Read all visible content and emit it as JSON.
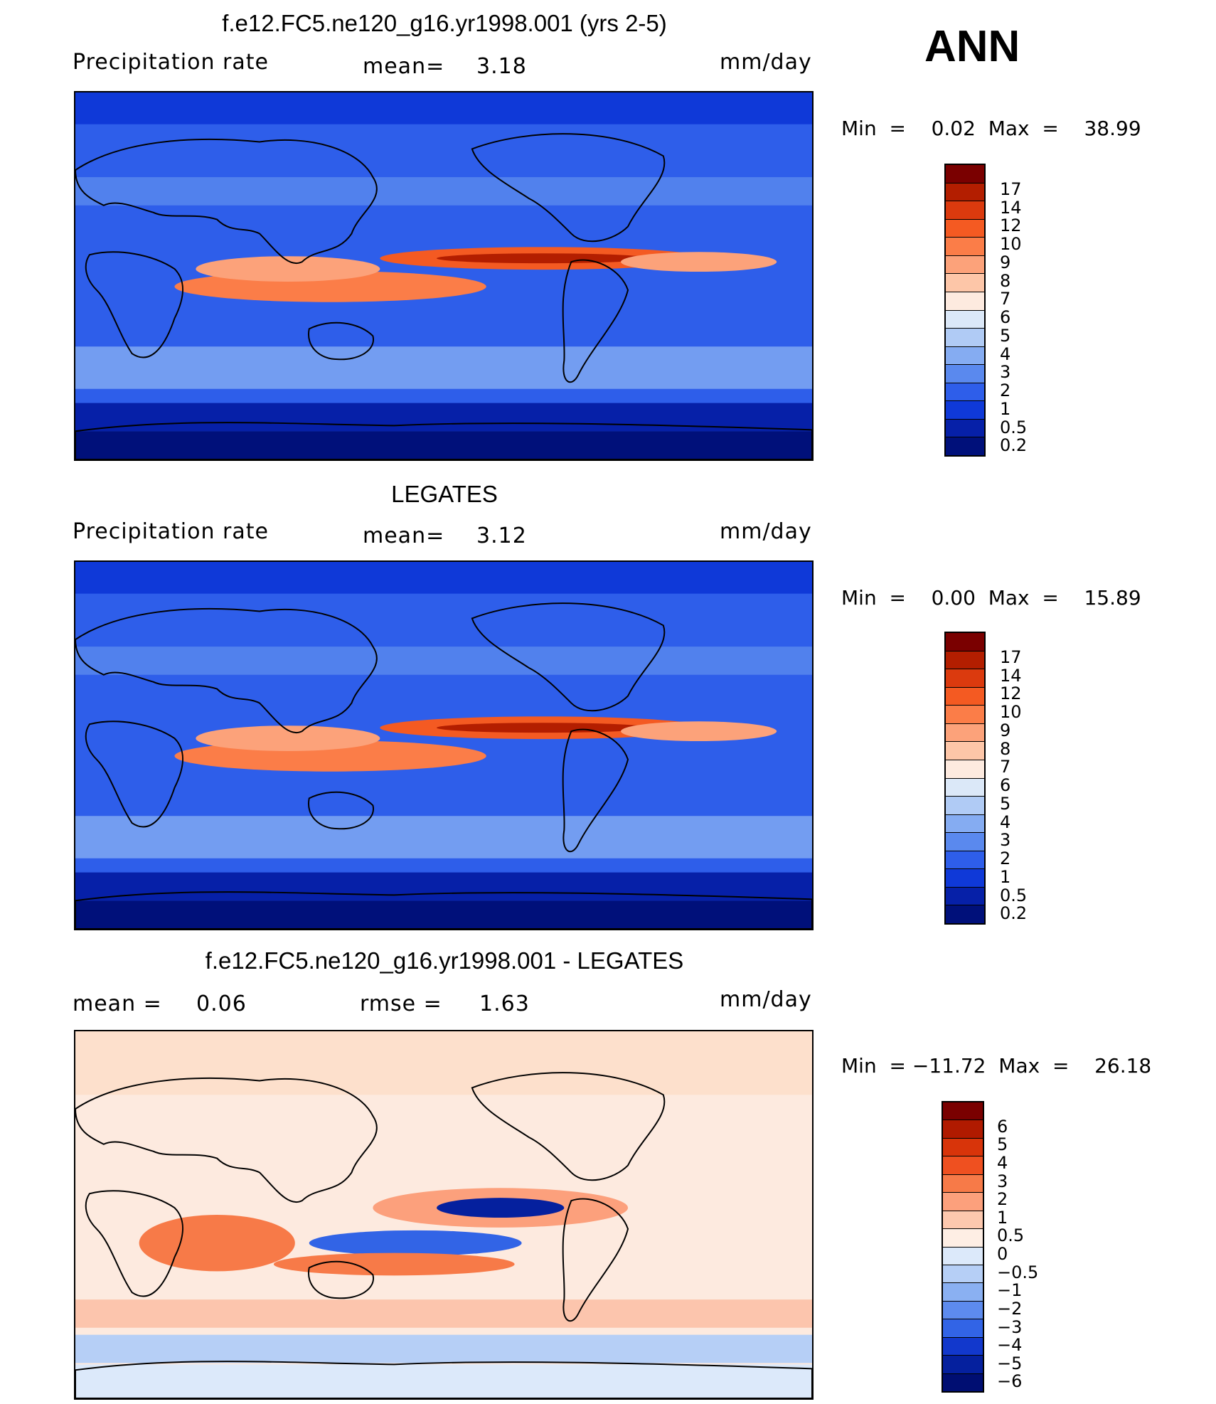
{
  "season": "ANN",
  "panels": [
    {
      "title": "f.e12.FC5.ne120_g16.yr1998.001 (yrs 2-5)",
      "left_label": "Precipitation  rate",
      "stat1_label": "mean=",
      "stat1_value": "3.18",
      "stat2_label": "",
      "stat2_value": "",
      "units": "mm/day",
      "min_label": "Min  =",
      "min_value": "0.02",
      "max_label": "Max  =",
      "max_value": "38.99",
      "levels": [
        "17",
        "14",
        "12",
        "10",
        "9",
        "8",
        "7",
        "6",
        "5",
        "4",
        "3",
        "2",
        "1",
        "0.5",
        "0.2"
      ],
      "colors": [
        "#7a0000",
        "#b31e00",
        "#db3a0e",
        "#f45a22",
        "#fb7d48",
        "#fca27a",
        "#fdc6a8",
        "#fdeadf",
        "#dbe8f8",
        "#b0cbf5",
        "#85acf2",
        "#5a89ee",
        "#2e5eea",
        "#0f39d8",
        "#0620a8",
        "#00107a"
      ]
    },
    {
      "title": "LEGATES",
      "left_label": "Precipitation  rate",
      "stat1_label": "mean=",
      "stat1_value": "3.12",
      "stat2_label": "",
      "stat2_value": "",
      "units": "mm/day",
      "min_label": "Min  =",
      "min_value": "0.00",
      "max_label": "Max  =",
      "max_value": "15.89",
      "levels": [
        "17",
        "14",
        "12",
        "10",
        "9",
        "8",
        "7",
        "6",
        "5",
        "4",
        "3",
        "2",
        "1",
        "0.5",
        "0.2"
      ],
      "colors": [
        "#7a0000",
        "#b31e00",
        "#db3a0e",
        "#f45a22",
        "#fb7d48",
        "#fca27a",
        "#fdc6a8",
        "#fdeadf",
        "#dbe8f8",
        "#b0cbf5",
        "#85acf2",
        "#5a89ee",
        "#2e5eea",
        "#0f39d8",
        "#0620a8",
        "#00107a"
      ]
    },
    {
      "title": "f.e12.FC5.ne120_g16.yr1998.001 - LEGATES",
      "left_label": "mean  =",
      "stat1_label": "0.06",
      "stat1_value": "",
      "stat2_label": "rmse  =",
      "stat2_value": "1.63",
      "units": "mm/day",
      "min_label": "Min  =",
      "min_value": "−11.72",
      "max_label": "Max  =",
      "max_value": "26.18",
      "levels": [
        "6",
        "5",
        "4",
        "3",
        "2",
        "1",
        "0.5",
        "0",
        "−0.5",
        "−1",
        "−2",
        "−3",
        "−4",
        "−5",
        "−6"
      ],
      "colors": [
        "#7a0000",
        "#b01a00",
        "#d8340a",
        "#ef5020",
        "#f77a48",
        "#fca07c",
        "#fdc8ae",
        "#feeee4",
        "#dce9fa",
        "#b6cff6",
        "#8ab0f2",
        "#5d8bee",
        "#3264e6",
        "#1238cc",
        "#05209e",
        "#000e72"
      ]
    }
  ]
}
